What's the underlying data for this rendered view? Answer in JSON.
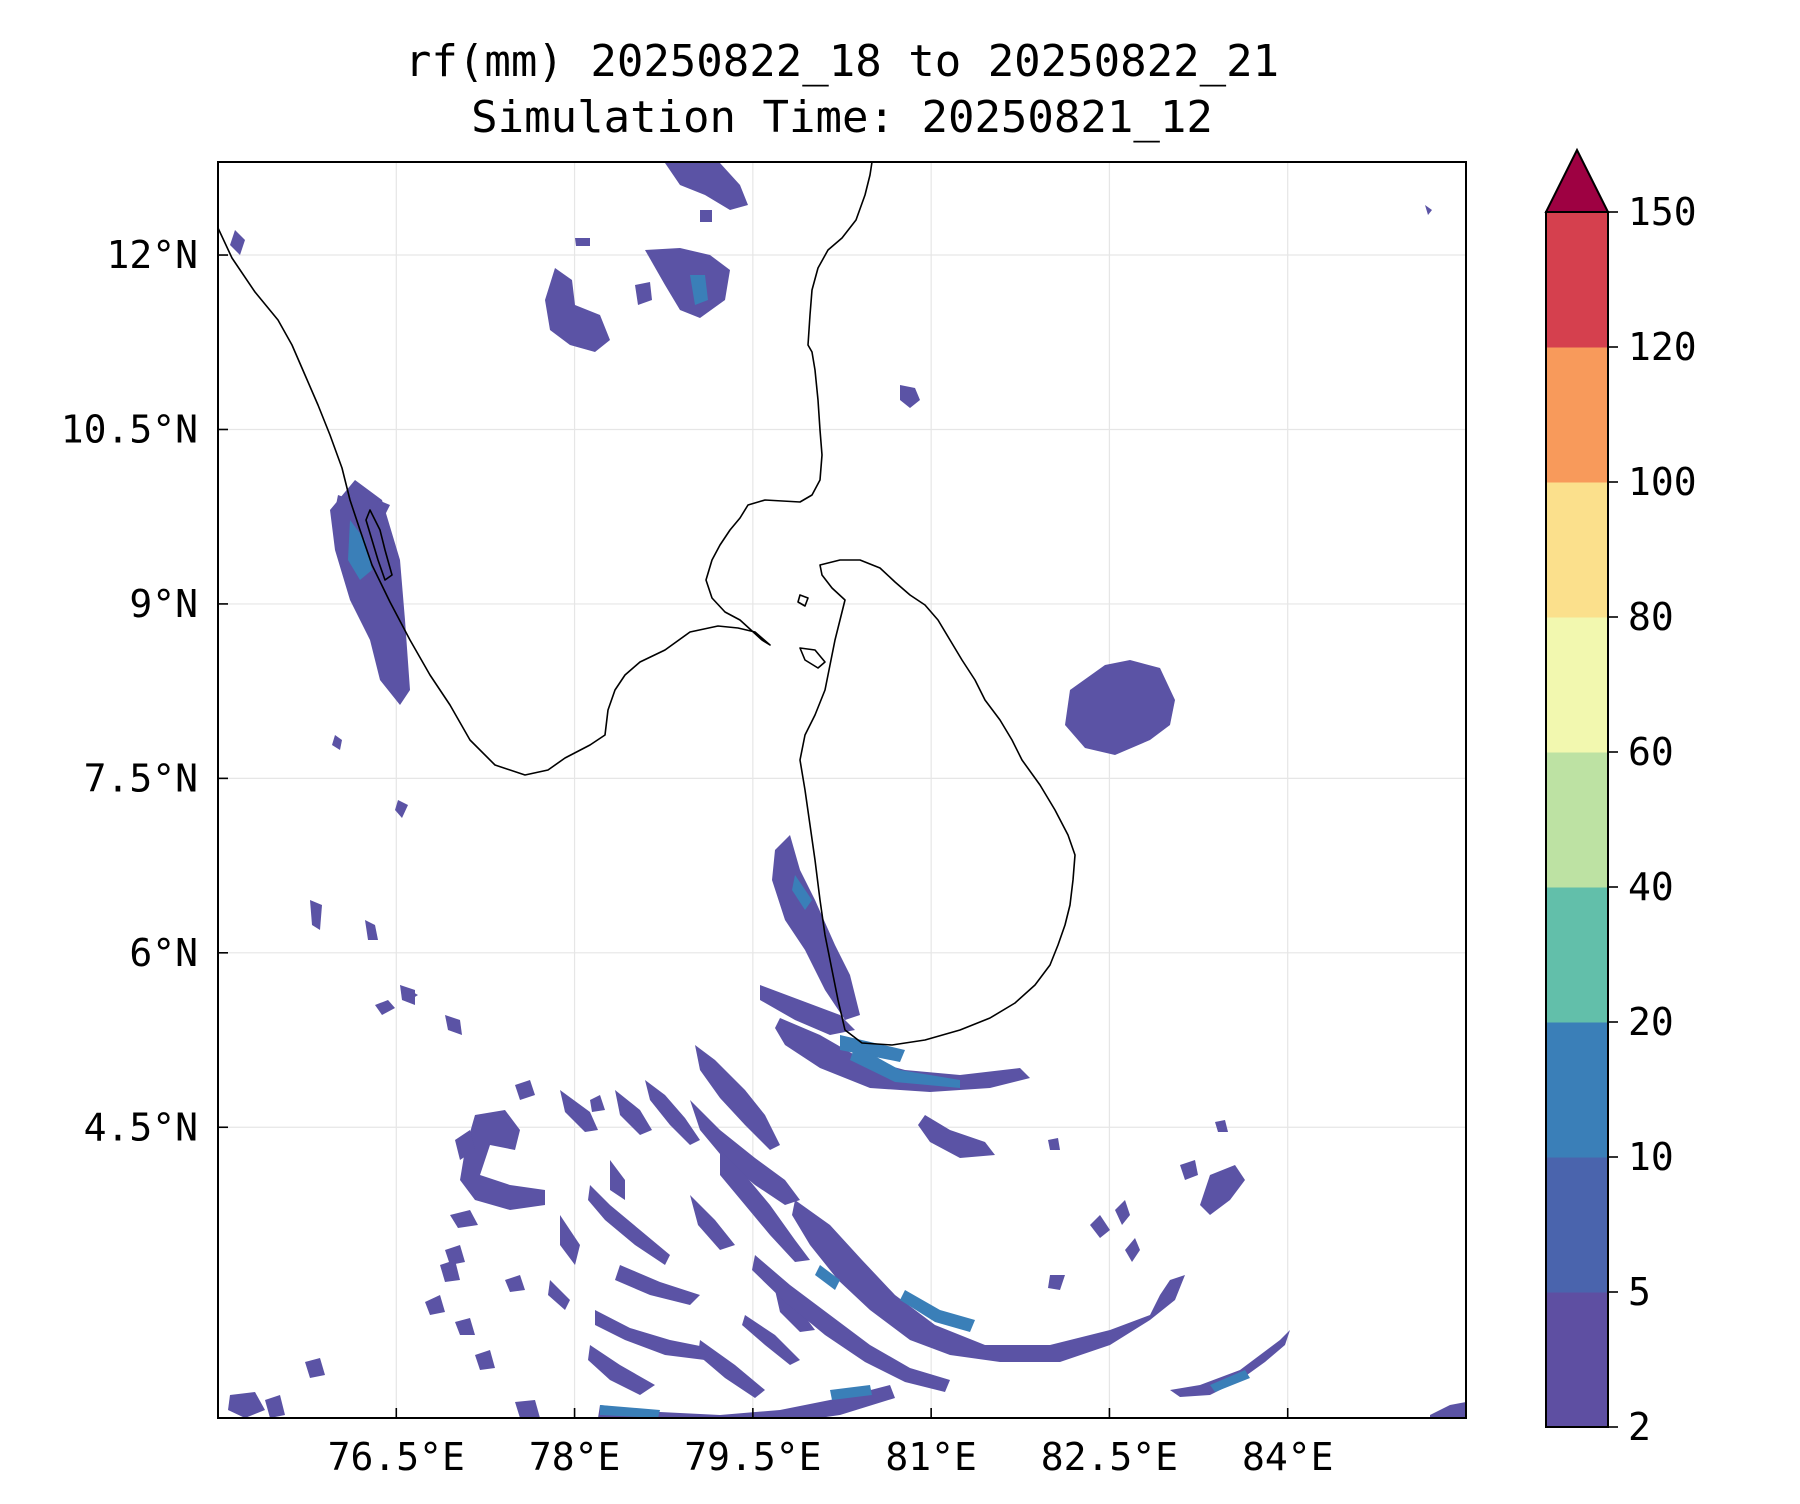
{
  "title": {
    "line1": "rf(mm) 20250822_18 to 20250822_21",
    "line2": "Simulation Time: 20250821_12"
  },
  "map": {
    "lon_range": [
      75.0,
      85.5
    ],
    "lat_range": [
      2.0,
      12.8
    ],
    "x_ticks": [
      "76.5°E",
      "78°E",
      "79.5°E",
      "81°E",
      "82.5°E",
      "84°E"
    ],
    "y_ticks": [
      "12°N",
      "10.5°N",
      "9°N",
      "7.5°N",
      "6°N",
      "4.5°N"
    ],
    "grid": true,
    "coastline_color": "#000000",
    "region_labels": []
  },
  "colorbar": {
    "levels": [
      "2",
      "5",
      "10",
      "20",
      "40",
      "60",
      "80",
      "100",
      "120",
      "150"
    ],
    "colors": [
      "#5e4fa2",
      "#4a64ad",
      "#3a7fb8",
      "#62bfaa",
      "#bde2a3",
      "#f2f8af",
      "#fbe08c",
      "#f89a5b",
      "#d5404e",
      "#9e0142"
    ],
    "extend": "max"
  },
  "rain_colors": {
    "light": "#5b53a5",
    "medium": "#3a7fb8"
  }
}
